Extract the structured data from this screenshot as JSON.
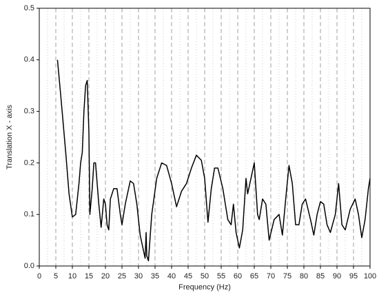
{
  "chart_data": {
    "type": "line",
    "xlabel": "Frequency (Hz)",
    "ylabel": "Translation X - axis",
    "x": [
      5.5,
      6.5,
      8,
      9,
      10,
      11,
      12,
      12.5,
      13,
      13.5,
      14,
      14.5,
      15,
      15.3,
      16,
      16.5,
      17,
      18,
      18.7,
      19.5,
      20,
      20.5,
      21,
      21.5,
      22.5,
      23.5,
      24.5,
      25,
      26,
      27.5,
      28.5,
      29.5,
      30.5,
      31.5,
      32,
      32.3,
      32.5,
      33,
      34,
      35.5,
      37,
      38.5,
      40,
      41.5,
      43,
      44.5,
      46,
      47.5,
      49,
      50,
      51,
      52,
      53,
      54,
      55.5,
      57,
      58,
      58.7,
      59.5,
      60.5,
      61.5,
      62.5,
      63,
      64,
      65,
      66,
      66.5,
      67.5,
      68.5,
      69.5,
      71,
      72.5,
      73.5,
      74.5,
      75.5,
      76.5,
      77.5,
      78.5,
      79.5,
      80.5,
      82,
      83,
      84,
      85,
      86,
      87,
      88,
      89.5,
      90.5,
      91.5,
      92.5,
      94,
      95.5,
      96.5,
      97.5,
      98.5,
      99.5,
      100
    ],
    "series": [
      {
        "color": "#000000",
        "values": [
          0.4,
          0.33,
          0.22,
          0.14,
          0.095,
          0.1,
          0.16,
          0.2,
          0.22,
          0.3,
          0.35,
          0.36,
          0.26,
          0.1,
          0.15,
          0.2,
          0.2,
          0.12,
          0.075,
          0.13,
          0.12,
          0.08,
          0.07,
          0.13,
          0.15,
          0.15,
          0.1,
          0.08,
          0.12,
          0.165,
          0.16,
          0.12,
          0.06,
          0.03,
          0.015,
          0.065,
          0.02,
          0.01,
          0.1,
          0.17,
          0.2,
          0.195,
          0.16,
          0.115,
          0.145,
          0.16,
          0.19,
          0.215,
          0.205,
          0.17,
          0.085,
          0.15,
          0.19,
          0.19,
          0.15,
          0.09,
          0.08,
          0.12,
          0.065,
          0.035,
          0.07,
          0.17,
          0.14,
          0.17,
          0.2,
          0.1,
          0.09,
          0.13,
          0.12,
          0.05,
          0.09,
          0.1,
          0.06,
          0.13,
          0.195,
          0.16,
          0.08,
          0.08,
          0.12,
          0.13,
          0.09,
          0.06,
          0.1,
          0.125,
          0.12,
          0.08,
          0.065,
          0.1,
          0.16,
          0.08,
          0.07,
          0.11,
          0.13,
          0.1,
          0.055,
          0.09,
          0.15,
          0.17
        ]
      }
    ],
    "xlim": [
      0,
      100
    ],
    "xticks": [
      0,
      5,
      10,
      15,
      20,
      25,
      30,
      35,
      40,
      45,
      50,
      55,
      60,
      65,
      70,
      75,
      80,
      85,
      90,
      95,
      100
    ],
    "ylim": [
      0,
      0.5
    ],
    "yticks": [
      {
        "value": 0,
        "label": "0.0"
      },
      0.1,
      0.2,
      0.3,
      0.4,
      0.5
    ],
    "grid": true
  }
}
